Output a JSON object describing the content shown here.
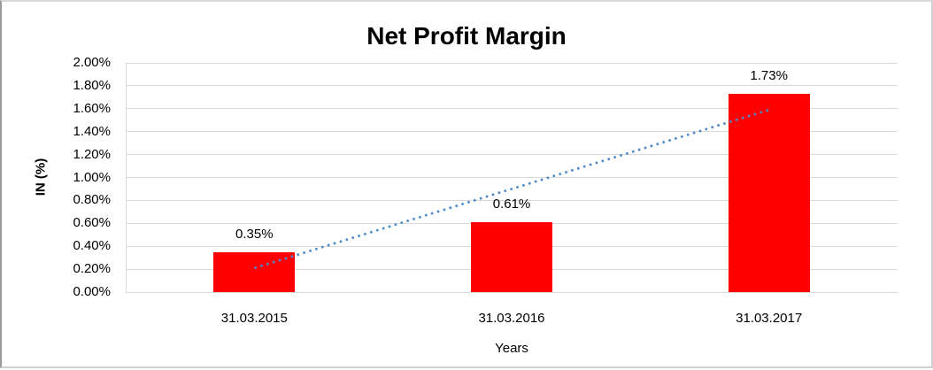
{
  "chart": {
    "title": "Net Profit Margin",
    "xlabel": "Years",
    "ylabel": "IN (%)"
  },
  "chart_data": {
    "type": "bar",
    "title": "Net Profit Margin",
    "categories": [
      "31.03.2015",
      "31.03.2016",
      "31.03.2017"
    ],
    "values": [
      0.35,
      0.61,
      1.73
    ],
    "data_labels": [
      "0.35%",
      "0.61%",
      "1.73%"
    ],
    "xlabel": "Years",
    "ylabel": "IN (%)",
    "ylim": [
      0,
      2.0
    ],
    "ytick_step": 0.2,
    "ytick_labels": [
      "0.00%",
      "0.20%",
      "0.40%",
      "0.60%",
      "0.80%",
      "1.00%",
      "1.20%",
      "1.40%",
      "1.60%",
      "1.80%",
      "2.00%"
    ],
    "grid": true,
    "legend": false,
    "bar_color": "#ff0000",
    "gridline_color": "#d9d9d9",
    "trendline": {
      "type": "linear",
      "style": "dotted",
      "color": "#4e8ac8",
      "values": [
        0.21,
        0.9,
        1.59
      ]
    }
  }
}
